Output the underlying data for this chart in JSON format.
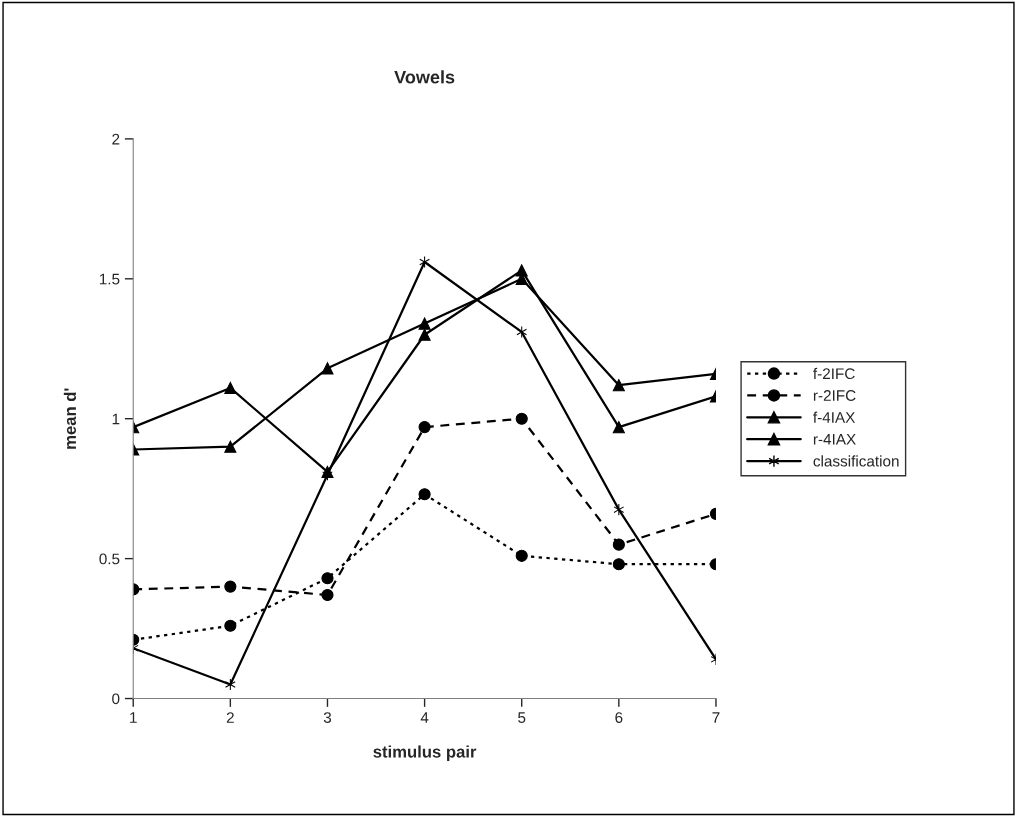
{
  "chart_data": {
    "type": "line",
    "title": "Vowels",
    "xlabel": "stimulus pair",
    "ylabel": "mean d'",
    "x": [
      1,
      2,
      3,
      4,
      5,
      6,
      7
    ],
    "series": [
      {
        "name": "f-2IFC",
        "color": "#000000",
        "marker": "circle",
        "line_style": "dotted",
        "values": [
          0.21,
          0.26,
          0.43,
          0.73,
          0.51,
          0.48,
          0.48
        ]
      },
      {
        "name": "r-2IFC",
        "color": "#000000",
        "marker": "circle",
        "line_style": "dashed",
        "values": [
          0.39,
          0.4,
          0.37,
          0.97,
          1.0,
          0.55,
          0.66
        ]
      },
      {
        "name": "f-4IAX",
        "color": "#000000",
        "marker": "triangle",
        "line_style": "solid",
        "values": [
          0.97,
          1.11,
          0.81,
          1.3,
          1.53,
          0.97,
          1.08
        ]
      },
      {
        "name": "r-4IAX",
        "color": "#000000",
        "marker": "triangle",
        "line_style": "solid",
        "values": [
          0.89,
          0.9,
          1.18,
          1.34,
          1.5,
          1.12,
          1.16
        ]
      },
      {
        "name": "classification",
        "color": "#000000",
        "marker": "cross",
        "line_style": "solid",
        "values": [
          0.18,
          0.05,
          0.8,
          1.56,
          1.31,
          0.675,
          0.14
        ]
      }
    ],
    "xlim": [
      1,
      7
    ],
    "xticks": [
      1,
      2,
      3,
      4,
      5,
      6,
      7
    ],
    "ylim": [
      0,
      2
    ],
    "yticks": [
      0,
      0.5,
      1,
      1.5,
      2
    ],
    "grid": false,
    "legend": "right"
  }
}
